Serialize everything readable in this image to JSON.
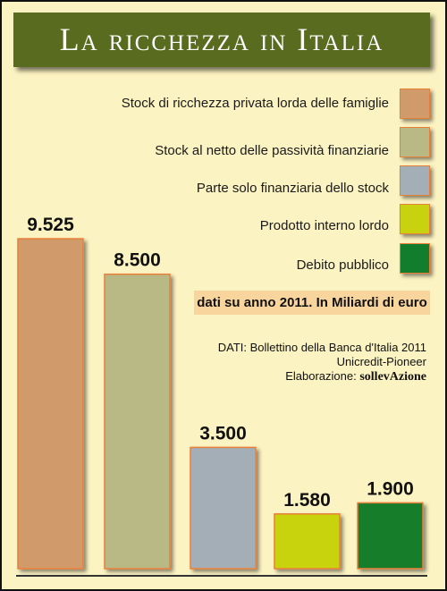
{
  "title": "La ricchezza in Italia",
  "legend": [
    {
      "label": "Stock di ricchezza privata lorda delle famiglie",
      "color": "#d19a6a"
    },
    {
      "label": "Stock al netto delle passività finanziarie",
      "color": "#b9b985"
    },
    {
      "label": "Parte solo finanziaria dello stock",
      "color": "#a3aeb6"
    },
    {
      "label": "Prodotto interno lordo",
      "color": "#c8d20f"
    },
    {
      "label": "Debito pubblico",
      "color": "#127d2c"
    }
  ],
  "note": "dati su anno 2011. In Miliardi di euro",
  "source": {
    "line1": "DATI: Bollettino della Banca d'Italia 2011",
    "line2": "Unicredit-Pioneer",
    "credit_prefix": "Elaborazione: ",
    "credit_brand": "sollevAzione"
  },
  "chart_data": {
    "type": "bar",
    "categories": [
      "Stock di ricchezza privata lorda delle famiglie",
      "Stock al netto delle passività finanziarie",
      "Parte solo finanziaria dello stock",
      "Prodotto interno lordo",
      "Debito pubblico"
    ],
    "values": [
      9525,
      8500,
      3500,
      1580,
      1900
    ],
    "value_labels": [
      "9.525",
      "8.500",
      "3.500",
      "1.580",
      "1.900"
    ],
    "colors": [
      "#d19a6a",
      "#b9b985",
      "#a3aeb6",
      "#c8d20f",
      "#127d2c"
    ],
    "value_unit": "Miliardi di euro",
    "ylim": [
      0,
      9525
    ],
    "grid": false,
    "legend_position": "top-right"
  }
}
